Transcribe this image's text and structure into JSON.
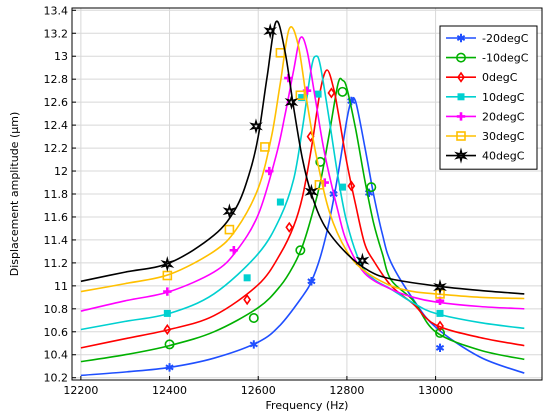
{
  "chart_data": {
    "type": "line",
    "title": "",
    "xlabel": "Frequency (Hz)",
    "ylabel": "Displacement amplitude (µm)",
    "xlim": [
      12180,
      13240
    ],
    "ylim": [
      10.18,
      13.42
    ],
    "xticks": [
      12200,
      12400,
      12600,
      12800,
      13000
    ],
    "yticks": [
      10.2,
      10.4,
      10.6,
      10.8,
      11,
      11.2,
      11.4,
      11.6,
      11.8,
      12,
      12.2,
      12.4,
      12.6,
      12.8,
      13,
      13.2,
      13.4
    ],
    "grid": true,
    "legend_position": "top-right",
    "series": [
      {
        "name": "-20degC",
        "color": "#1f4fff",
        "marker": "asterisk",
        "x": [
          12200,
          12300,
          12400,
          12500,
          12600,
          12650,
          12700,
          12720,
          12740,
          12760,
          12780,
          12800,
          12810,
          12820,
          12840,
          12860,
          12880,
          12900,
          12950,
          13000,
          13100,
          13200
        ],
        "y": [
          10.22,
          10.25,
          10.29,
          10.37,
          10.51,
          10.66,
          10.91,
          11.04,
          11.25,
          11.56,
          11.97,
          12.45,
          12.61,
          12.6,
          12.22,
          11.8,
          11.45,
          11.2,
          10.88,
          10.64,
          10.38,
          10.24
        ],
        "markers_x": [
          12400,
          12590,
          12720,
          12770,
          12810,
          12850,
          13010
        ],
        "markers_y": [
          10.29,
          10.49,
          11.04,
          11.8,
          12.61,
          11.81,
          10.46
        ]
      },
      {
        "name": "-10degC",
        "color": "#00b000",
        "marker": "circle",
        "x": [
          12200,
          12300,
          12400,
          12500,
          12600,
          12650,
          12680,
          12700,
          12720,
          12740,
          12760,
          12780,
          12790,
          12800,
          12820,
          12840,
          12860,
          12880,
          12900,
          12950,
          13000,
          13100,
          13200
        ],
        "y": [
          10.34,
          10.4,
          10.48,
          10.6,
          10.81,
          11.0,
          11.18,
          11.35,
          11.6,
          11.9,
          12.32,
          12.76,
          12.79,
          12.72,
          12.36,
          11.93,
          11.55,
          11.28,
          11.05,
          10.87,
          10.6,
          10.44,
          10.36
        ],
        "markers_x": [
          12400,
          12590,
          12695,
          12740,
          12790,
          12855,
          13010
        ],
        "markers_y": [
          10.49,
          10.72,
          11.31,
          12.08,
          12.69,
          11.86,
          10.59
        ]
      },
      {
        "name": "0degC",
        "color": "#ff0000",
        "marker": "diamond",
        "x": [
          12200,
          12300,
          12400,
          12500,
          12600,
          12650,
          12680,
          12700,
          12720,
          12740,
          12755,
          12770,
          12780,
          12800,
          12820,
          12840,
          12860,
          12900,
          12950,
          13000,
          13100,
          13200
        ],
        "y": [
          10.46,
          10.54,
          10.62,
          10.74,
          11.01,
          11.28,
          11.52,
          11.78,
          12.2,
          12.7,
          12.88,
          12.72,
          12.52,
          12.07,
          11.7,
          11.37,
          11.22,
          11.0,
          10.84,
          10.66,
          10.55,
          10.48
        ],
        "markers_x": [
          12395,
          12575,
          12670,
          12718,
          12765,
          12810,
          13010
        ],
        "markers_y": [
          10.62,
          10.88,
          11.51,
          12.3,
          12.68,
          11.87,
          10.65
        ]
      },
      {
        "name": "10degC",
        "color": "#00d0d0",
        "marker": "square",
        "x": [
          12200,
          12300,
          12400,
          12500,
          12600,
          12650,
          12680,
          12700,
          12720,
          12730,
          12740,
          12760,
          12780,
          12800,
          12830,
          12860,
          12900,
          12950,
          13000,
          13100,
          13200
        ],
        "y": [
          10.62,
          10.69,
          10.76,
          10.93,
          11.28,
          11.6,
          11.93,
          12.38,
          12.9,
          13.0,
          12.92,
          12.45,
          11.95,
          11.55,
          11.2,
          11.06,
          10.97,
          10.85,
          10.76,
          10.68,
          10.63
        ],
        "markers_x": [
          12395,
          12575,
          12650,
          12698,
          12735,
          12790,
          13010
        ],
        "markers_y": [
          10.76,
          11.07,
          11.73,
          12.64,
          12.67,
          11.86,
          10.76
        ]
      },
      {
        "name": "20degC",
        "color": "#ff00ff",
        "marker": "plus",
        "x": [
          12200,
          12300,
          12400,
          12500,
          12550,
          12600,
          12640,
          12660,
          12680,
          12695,
          12710,
          12730,
          12750,
          12780,
          12800,
          12840,
          12900,
          12950,
          13000,
          13100,
          13200
        ],
        "y": [
          10.78,
          10.87,
          10.95,
          11.12,
          11.3,
          11.62,
          12.13,
          12.48,
          12.88,
          13.16,
          13.05,
          12.6,
          12.15,
          11.65,
          11.38,
          11.11,
          10.97,
          10.9,
          10.86,
          10.82,
          10.8
        ],
        "markers_x": [
          12395,
          12545,
          12625,
          12668,
          12710,
          12750,
          13010
        ],
        "markers_y": [
          10.95,
          11.31,
          12.0,
          12.81,
          12.7,
          11.9,
          10.87
        ]
      },
      {
        "name": "30degC",
        "color": "#ffc000",
        "marker": "square-open",
        "x": [
          12200,
          12300,
          12400,
          12500,
          12550,
          12600,
          12630,
          12650,
          12670,
          12690,
          12710,
          12730,
          12760,
          12800,
          12840,
          12900,
          12950,
          13000,
          13100,
          13200
        ],
        "y": [
          10.95,
          11.02,
          11.1,
          11.3,
          11.49,
          11.85,
          12.3,
          12.77,
          13.24,
          13.1,
          12.6,
          12.15,
          11.65,
          11.3,
          11.13,
          11.0,
          10.95,
          10.93,
          10.9,
          10.89
        ],
        "markers_x": [
          12395,
          12535,
          12615,
          12650,
          12695,
          12738,
          13010
        ],
        "markers_y": [
          11.09,
          11.49,
          12.21,
          13.03,
          12.66,
          11.88,
          10.93
        ]
      },
      {
        "name": "40degC",
        "color": "#000000",
        "marker": "star-open",
        "x": [
          12200,
          12300,
          12400,
          12500,
          12550,
          12580,
          12600,
          12620,
          12640,
          12660,
          12680,
          12700,
          12720,
          12750,
          12800,
          12850,
          12900,
          13000,
          13100,
          13200
        ],
        "y": [
          11.04,
          11.12,
          11.2,
          11.44,
          11.68,
          11.98,
          12.3,
          12.82,
          13.3,
          13.05,
          12.55,
          12.1,
          11.8,
          11.52,
          11.28,
          11.13,
          11.06,
          11.0,
          10.96,
          10.93
        ],
        "markers_x": [
          12395,
          12535,
          12595,
          12627,
          12675,
          12720,
          12835,
          13010
        ],
        "markers_y": [
          11.19,
          11.65,
          12.39,
          13.22,
          12.6,
          11.82,
          11.22,
          10.99
        ]
      }
    ]
  }
}
